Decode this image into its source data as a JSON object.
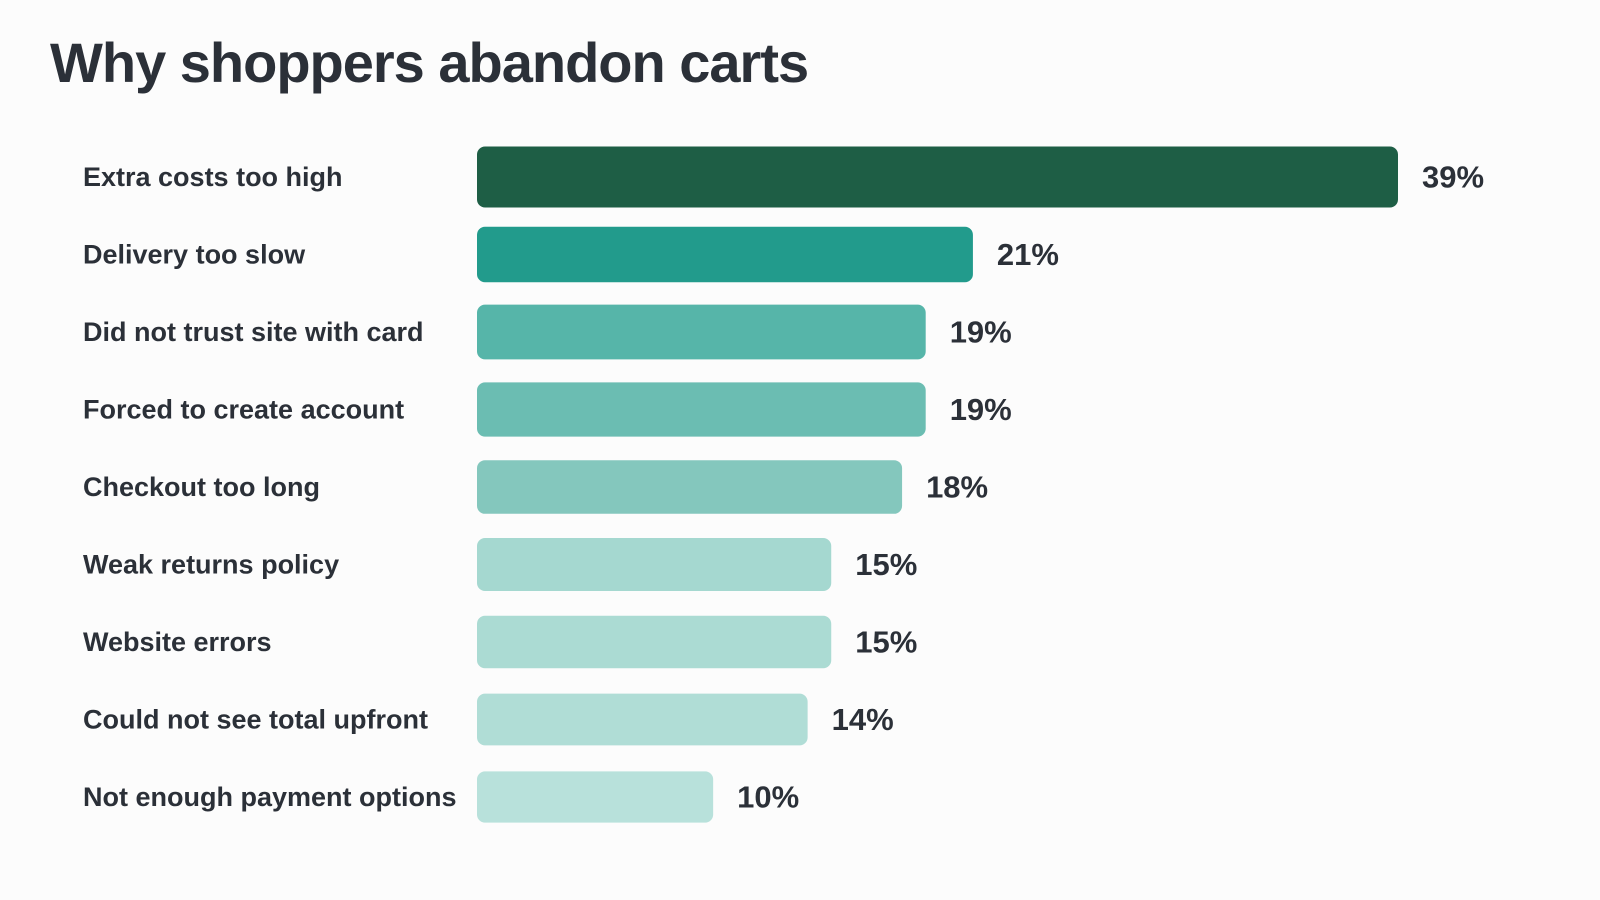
{
  "chart_data": {
    "type": "bar",
    "orientation": "horizontal",
    "title": "Why shoppers abandon carts",
    "xlabel": "",
    "ylabel": "",
    "xlim": [
      0,
      39
    ],
    "grid": false,
    "legend": "none",
    "value_suffix": "%",
    "categories": [
      "Extra costs too high",
      "Delivery too slow",
      "Did not trust site with card",
      "Forced to create account",
      "Checkout too long",
      "Weak returns policy",
      "Website errors",
      "Could not see total upfront",
      "Not enough payment options"
    ],
    "values": [
      39,
      21,
      19,
      19,
      18,
      15,
      15,
      14,
      10
    ],
    "colors": [
      "#1e5e45",
      "#229b8c",
      "#56b5a9",
      "#6bbdb2",
      "#84c7bd",
      "#a5d8d0",
      "#abdbd3",
      "#b0ddd6",
      "#b8e1db"
    ]
  }
}
